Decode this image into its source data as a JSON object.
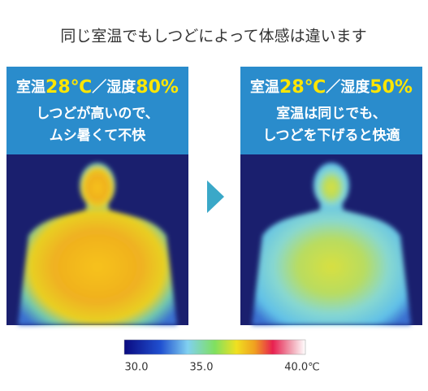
{
  "title": "同じ室温でもしつどによって体感は違います",
  "panels": [
    {
      "heading": [
        {
          "text": "室温",
          "highlight": false
        },
        {
          "text": "28℃",
          "highlight": true
        },
        {
          "text": "／湿度",
          "highlight": false
        },
        {
          "text": "80%",
          "highlight": true
        }
      ],
      "caption": [
        "しつどが高いので、",
        "ムシ暑くて不快"
      ],
      "image": "hot"
    },
    {
      "heading": [
        {
          "text": "室温",
          "highlight": false
        },
        {
          "text": "28℃",
          "highlight": true
        },
        {
          "text": "／湿度",
          "highlight": false
        },
        {
          "text": "50%",
          "highlight": true
        }
      ],
      "caption": [
        "室温は同じでも、",
        "しつどを下げると快適"
      ],
      "image": "cool"
    }
  ],
  "scale": {
    "labels": [
      "30.0",
      "35.0",
      "40.0℃"
    ]
  }
}
